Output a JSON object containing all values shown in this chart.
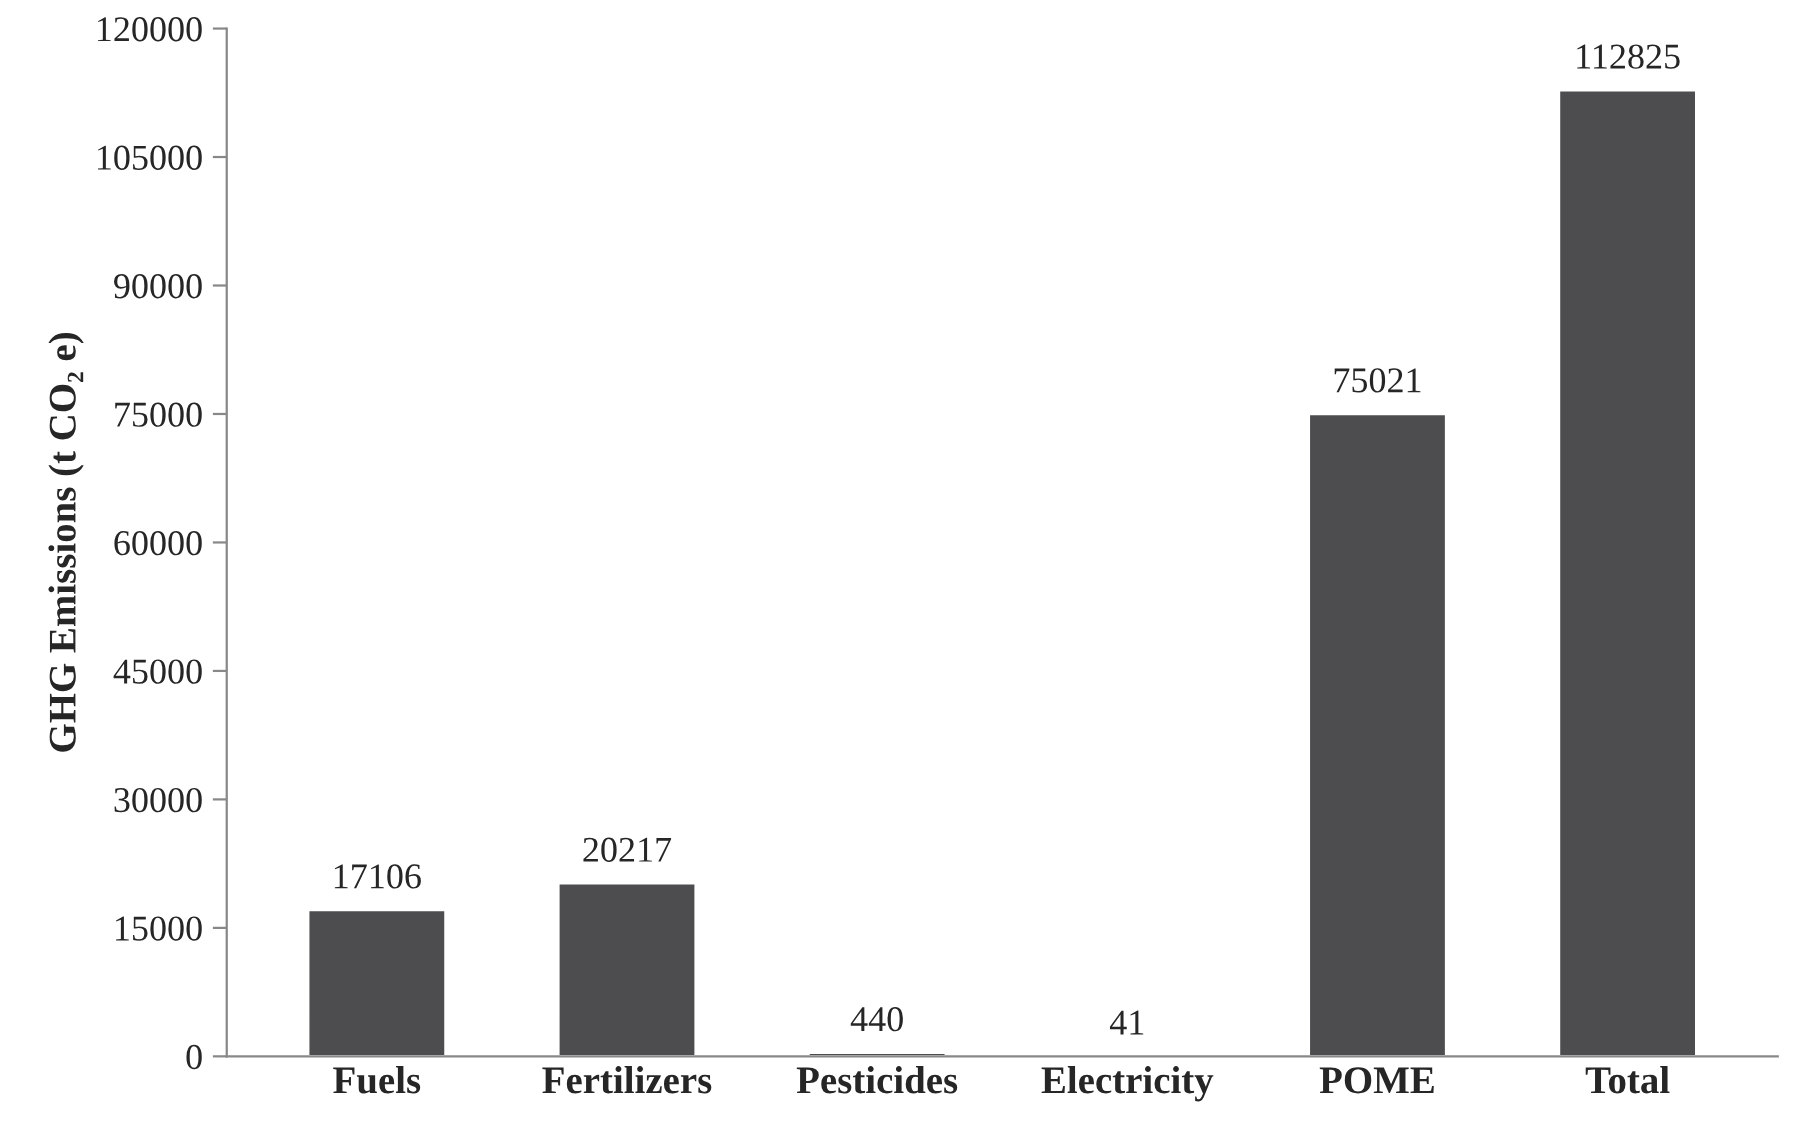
{
  "chart_data": {
    "type": "bar",
    "ylabel": "GHG Emissions (t CO₂ e)",
    "categories": [
      "Fuels",
      "Fertilizers",
      "Pesticides",
      "Electricity",
      "POME",
      "Total"
    ],
    "values": [
      17106,
      20217,
      440,
      41,
      75021,
      112825
    ],
    "color": "#4d4d4f",
    "ylim": [
      0,
      120000
    ],
    "yticks": [
      0,
      15000,
      30000,
      45000,
      60000,
      75000,
      90000,
      105000,
      120000
    ],
    "grid": false,
    "data_labels": true
  }
}
